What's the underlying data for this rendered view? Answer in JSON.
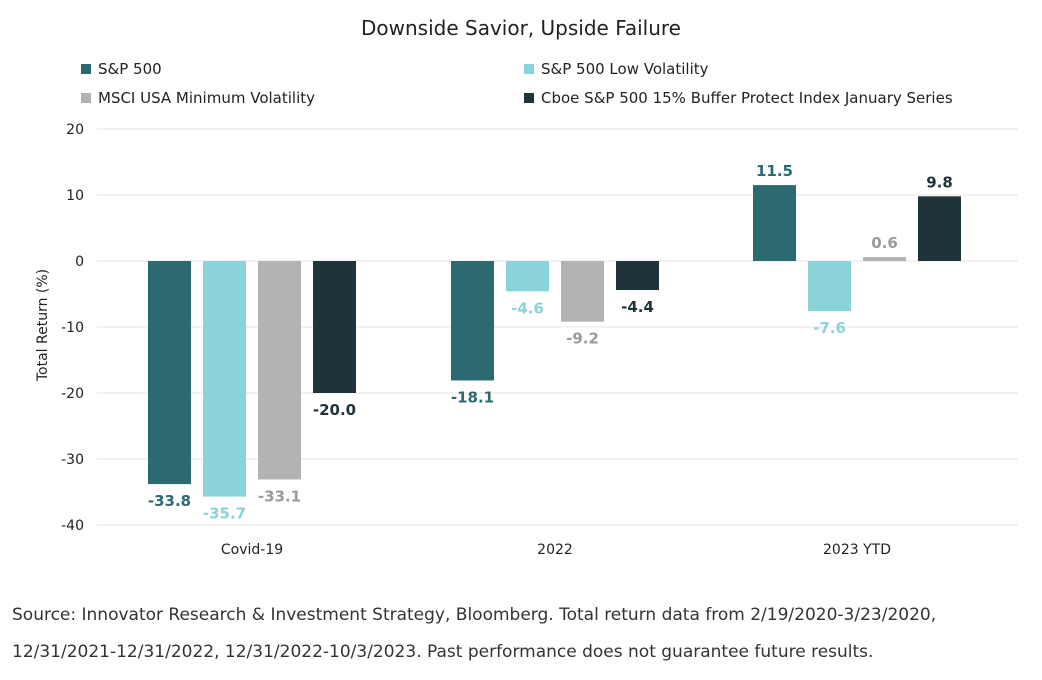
{
  "chart_data": {
    "type": "bar",
    "title": "Downside Savior, Upside Failure",
    "ylabel": "Total Return (%)",
    "xlabel": "",
    "ylim": [
      -40,
      20
    ],
    "yticks": [
      20,
      10,
      0,
      -10,
      -20,
      -30,
      -40
    ],
    "ytick_labels": [
      "20",
      "10",
      "0",
      "-10",
      "-20",
      "-30",
      "-40"
    ],
    "grid": true,
    "legend_position": "top",
    "categories": [
      "Covid-19",
      "2022",
      "2023 YTD"
    ],
    "series": [
      {
        "name": "S&P 500",
        "color": "#2b6a71",
        "label_color": "#2b6a71",
        "values": [
          -33.8,
          -18.1,
          11.5
        ],
        "labels": [
          "-33.8",
          "-18.1",
          "11.5"
        ]
      },
      {
        "name": "S&P 500 Low Volatility",
        "color": "#8ad3d8",
        "label_color": "#8ad3d8",
        "values": [
          -35.7,
          -4.6,
          -7.6
        ],
        "labels": [
          "-35.7",
          "-4.6",
          "-7.6"
        ]
      },
      {
        "name": "MSCI USA Minimum Volatility",
        "color": "#b3b3b3",
        "label_color": "#9a9a9a",
        "values": [
          -33.1,
          -9.2,
          0.6
        ],
        "labels": [
          "-33.1",
          "-9.2",
          "0.6"
        ]
      },
      {
        "name": "Cboe S&P 500 15% Buffer Protect Index January Series",
        "color": "#1f333b",
        "label_color": "#1f333b",
        "values": [
          -20.0,
          -4.4,
          9.8
        ],
        "labels": [
          "-20.0",
          "-4.4",
          "9.8"
        ]
      }
    ]
  },
  "source_note": "Source: Innovator Research & Investment Strategy, Bloomberg. Total return data from 2/19/2020-3/23/2020, 12/31/2021-12/31/2022, 12/31/2022-10/3/2023. Past performance does not guarantee future results."
}
